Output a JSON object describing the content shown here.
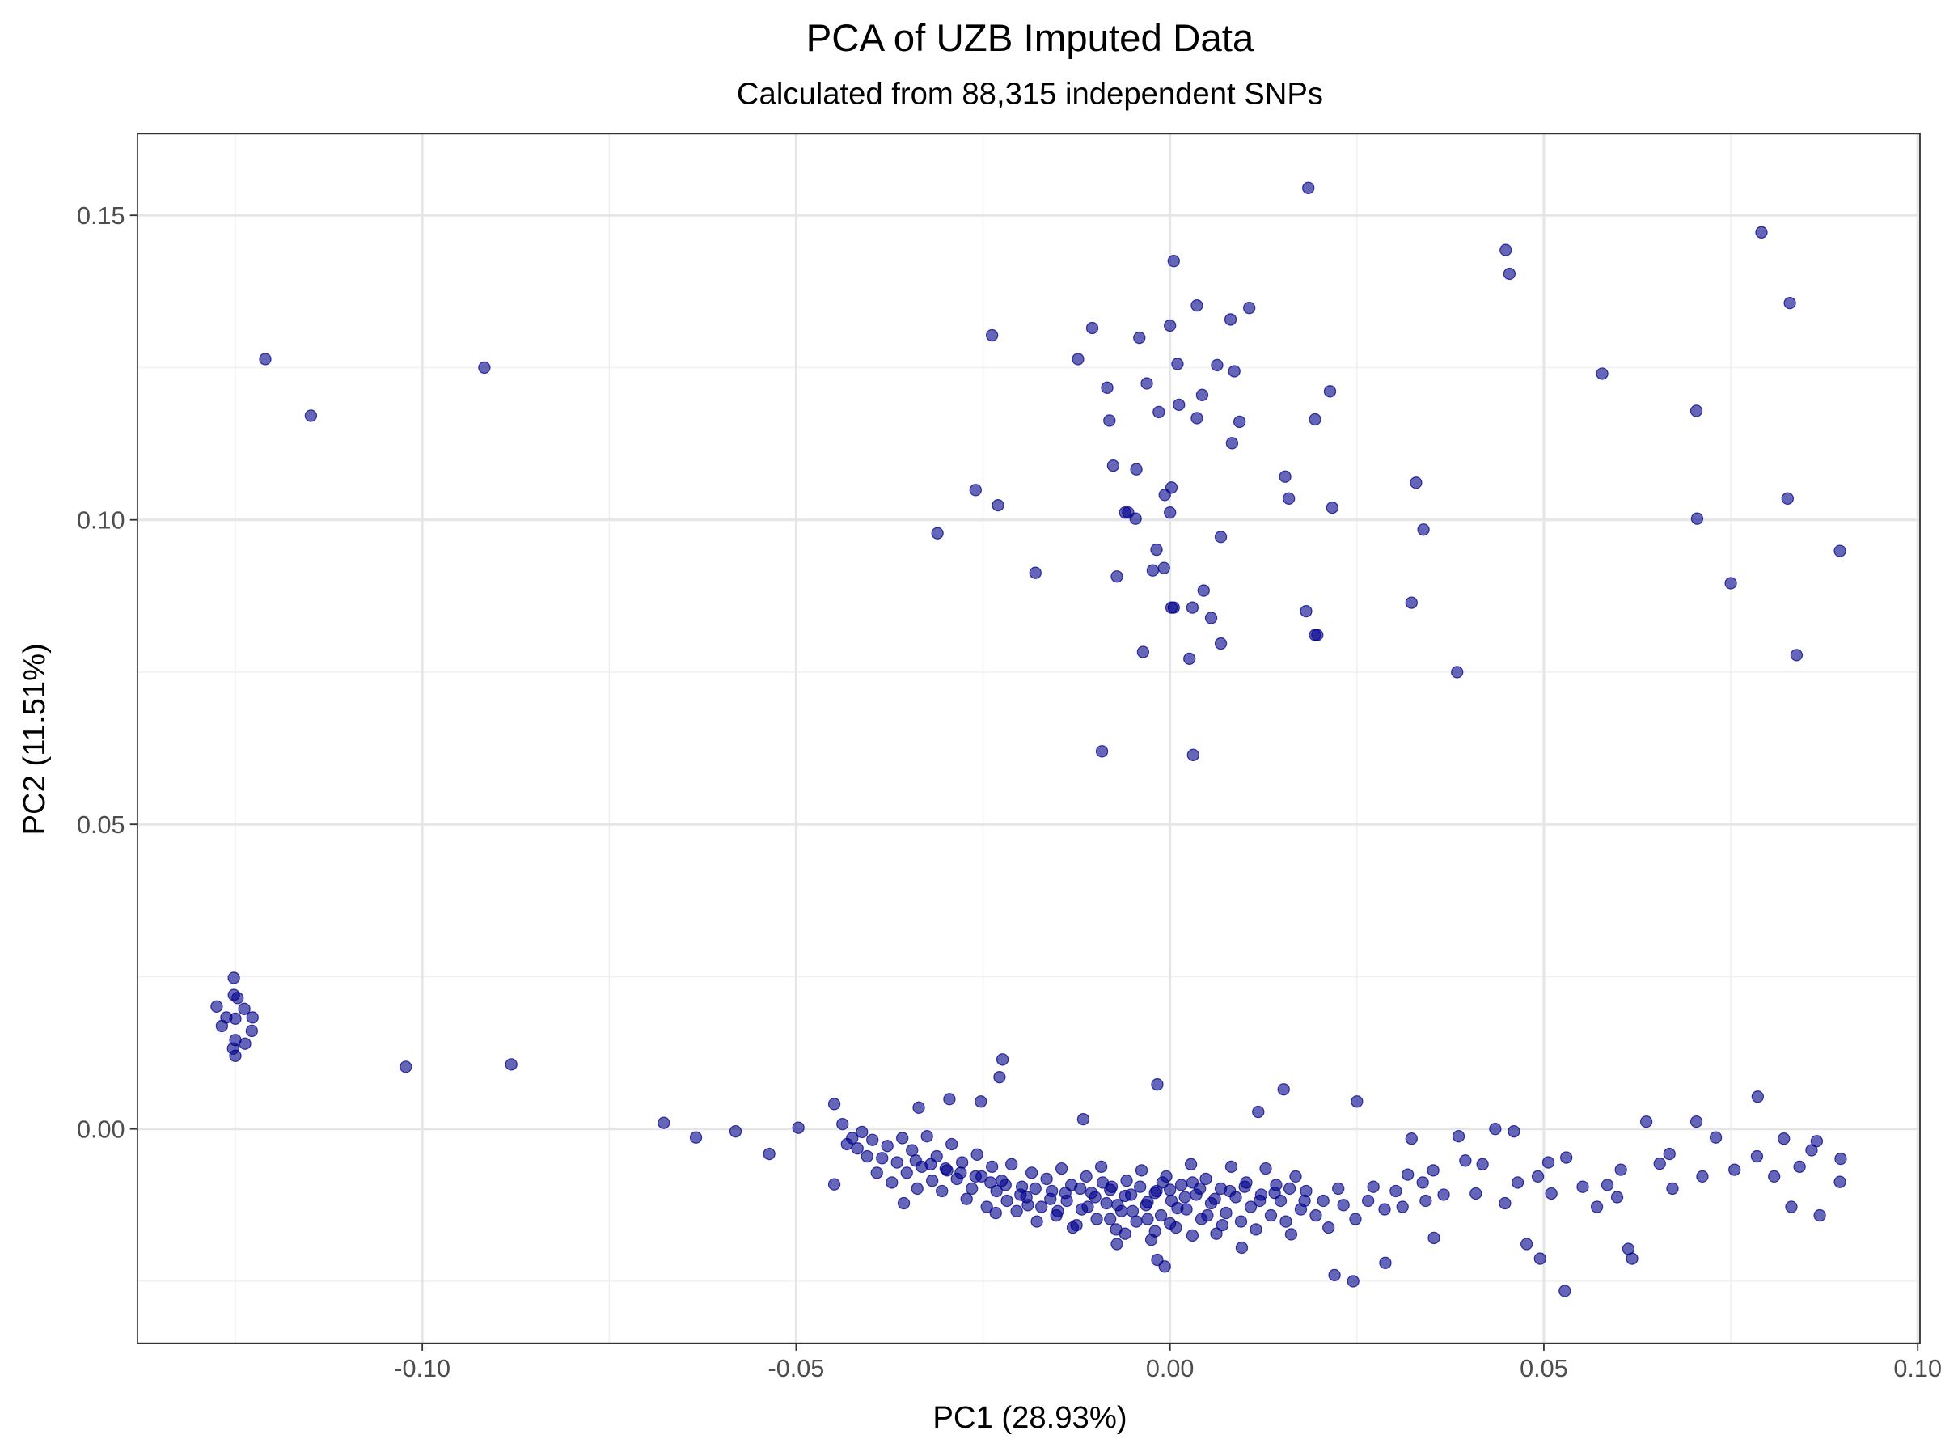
{
  "chart_data": {
    "type": "scatter",
    "title": "PCA of UZB Imputed Data",
    "subtitle": "Calculated from 88,315 independent SNPs",
    "xlabel": "PC1 (28.93%)",
    "ylabel": "PC2 (11.51%)",
    "xlim": [
      -0.1381,
      0.1003
    ],
    "ylim": [
      -0.0352,
      0.1634
    ],
    "x_ticks": [
      -0.1,
      -0.05,
      0.0,
      0.05,
      0.1
    ],
    "x_tick_labels": [
      "-0.10",
      "-0.05",
      "0.00",
      "0.05",
      "0.10"
    ],
    "y_ticks": [
      0.0,
      0.05,
      0.1,
      0.15
    ],
    "y_tick_labels": [
      "0.00",
      "0.05",
      "0.10",
      "0.15"
    ],
    "grid": true,
    "point_color": "#00008B",
    "point_opacity": 0.6,
    "points": [
      [
        -0.121,
        0.1264
      ],
      [
        -0.1149,
        0.1171
      ],
      [
        -0.0917,
        0.125
      ],
      [
        -0.1022,
        0.0102
      ],
      [
        -0.0881,
        0.0106
      ],
      [
        -0.1252,
        0.0248
      ],
      [
        -0.1275,
        0.0201
      ],
      [
        -0.1252,
        0.022
      ],
      [
        -0.1247,
        0.0215
      ],
      [
        -0.1268,
        0.0169
      ],
      [
        -0.1262,
        0.0183
      ],
      [
        -0.125,
        0.0181
      ],
      [
        -0.1238,
        0.0197
      ],
      [
        -0.1227,
        0.0183
      ],
      [
        -0.1228,
        0.0161
      ],
      [
        -0.125,
        0.0146
      ],
      [
        -0.1237,
        0.014
      ],
      [
        -0.1253,
        0.0132
      ],
      [
        -0.125,
        0.012
      ],
      [
        0.0185,
        0.1545
      ],
      [
        0.0005,
        0.1425
      ],
      [
        0.0036,
        0.1352
      ],
      [
        0.0106,
        0.1348
      ],
      [
        -0.0104,
        0.1315
      ],
      [
        0.0,
        0.1319
      ],
      [
        -0.0238,
        0.1303
      ],
      [
        -0.0041,
        0.1299
      ],
      [
        0.0081,
        0.1329
      ],
      [
        -0.0123,
        0.1264
      ],
      [
        0.001,
        0.1256
      ],
      [
        0.0063,
        0.1254
      ],
      [
        0.0086,
        0.1244
      ],
      [
        -0.0031,
        0.1224
      ],
      [
        -0.0084,
        0.1217
      ],
      [
        0.0214,
        0.1211
      ],
      [
        0.0043,
        0.1205
      ],
      [
        0.0012,
        0.1189
      ],
      [
        -0.0015,
        0.1177
      ],
      [
        0.0036,
        0.1167
      ],
      [
        -0.0081,
        0.1163
      ],
      [
        0.0093,
        0.1161
      ],
      [
        0.0194,
        0.1165
      ],
      [
        0.0083,
        0.1126
      ],
      [
        -0.0076,
        0.1089
      ],
      [
        -0.0045,
        0.1083
      ],
      [
        0.0154,
        0.1071
      ],
      [
        -0.026,
        0.1049
      ],
      [
        0.0002,
        0.1053
      ],
      [
        -0.0007,
        0.1041
      ],
      [
        0.0159,
        0.1035
      ],
      [
        -0.023,
        0.1024
      ],
      [
        0.0217,
        0.102
      ],
      [
        -0.006,
        0.1012
      ],
      [
        -0.0056,
        0.1012
      ],
      [
        0.0,
        0.1012
      ],
      [
        -0.0046,
        0.1002
      ],
      [
        -0.0311,
        0.0978
      ],
      [
        0.0068,
        0.0972
      ],
      [
        -0.0018,
        0.0951
      ],
      [
        -0.0008,
        0.0921
      ],
      [
        -0.0023,
        0.0917
      ],
      [
        -0.018,
        0.0913
      ],
      [
        -0.0071,
        0.0907
      ],
      [
        0.0045,
        0.0884
      ],
      [
        0.0002,
        0.0856
      ],
      [
        0.0005,
        0.0856
      ],
      [
        0.003,
        0.0856
      ],
      [
        0.0182,
        0.085
      ],
      [
        0.0055,
        0.0839
      ],
      [
        0.0197,
        0.0811
      ],
      [
        0.0194,
        0.0811
      ],
      [
        0.0068,
        0.0797
      ],
      [
        -0.0036,
        0.0783
      ],
      [
        0.0026,
        0.0772
      ],
      [
        -0.0091,
        0.062
      ],
      [
        0.0031,
        0.0614
      ],
      [
        0.0449,
        0.1443
      ],
      [
        0.0454,
        0.1404
      ],
      [
        0.0578,
        0.124
      ],
      [
        0.0329,
        0.1061
      ],
      [
        0.0339,
        0.0984
      ],
      [
        0.0323,
        0.0864
      ],
      [
        0.0384,
        0.075
      ],
      [
        0.0791,
        0.1472
      ],
      [
        0.0829,
        0.1356
      ],
      [
        0.0704,
        0.1179
      ],
      [
        0.0826,
        0.1035
      ],
      [
        0.0705,
        0.1002
      ],
      [
        0.0896,
        0.0949
      ],
      [
        0.075,
        0.0896
      ],
      [
        0.0838,
        0.0778
      ],
      [
        -0.0677,
        0.001
      ],
      [
        -0.0634,
        -0.0014
      ],
      [
        -0.0581,
        -0.0004
      ],
      [
        -0.0536,
        -0.0041
      ],
      [
        -0.0497,
        0.0002
      ],
      [
        -0.0449,
        0.0041
      ],
      [
        -0.0449,
        -0.0091
      ],
      [
        -0.0224,
        0.0114
      ],
      [
        -0.0228,
        0.0085
      ],
      [
        -0.0017,
        0.0073
      ],
      [
        0.0152,
        0.0065
      ],
      [
        0.025,
        0.0045
      ],
      [
        0.0786,
        0.0053
      ],
      [
        0.0528,
        -0.0266
      ],
      [
        0.0495,
        -0.0213
      ],
      [
        0.0477,
        -0.0189
      ],
      [
        0.0618,
        -0.0213
      ],
      [
        0.0613,
        -0.0197
      ],
      [
        0.0245,
        -0.025
      ],
      [
        0.022,
        -0.024
      ],
      [
        0.0288,
        -0.022
      ],
      [
        0.0353,
        -0.0179
      ],
      [
        0.0869,
        -0.0142
      ],
      [
        0.0831,
        -0.0128
      ],
      [
        0.0896,
        -0.0087
      ],
      [
        0.0897,
        -0.0049
      ],
      [
        0.073,
        -0.0014
      ],
      [
        0.0637,
        0.0012
      ],
      [
        0.0704,
        0.0012
      ],
      [
        0.0603,
        -0.0067
      ],
      [
        0.0571,
        -0.0128
      ],
      [
        0.051,
        -0.0106
      ],
      [
        0.053,
        -0.0047
      ],
      [
        0.046,
        -0.0004
      ],
      [
        0.0435,
        0.0
      ],
      [
        0.0386,
        -0.0012
      ],
      [
        0.0323,
        -0.0016
      ],
      [
        0.0409,
        -0.0106
      ],
      [
        0.0366,
        -0.0108
      ],
      [
        0.0311,
        -0.0128
      ],
      [
        0.0162,
        -0.0173
      ],
      [
        0.0096,
        -0.0195
      ],
      [
        -0.0017,
        -0.0215
      ],
      [
        -0.0007,
        -0.0226
      ],
      [
        -0.0071,
        -0.0189
      ],
      [
        -0.0233,
        -0.0138
      ],
      [
        -0.0356,
        -0.0122
      ],
      [
        -0.0336,
        0.0035
      ],
      [
        -0.0295,
        0.0049
      ],
      [
        -0.0253,
        0.0045
      ],
      [
        -0.0116,
        0.0016
      ],
      [
        0.0118,
        0.0028
      ],
      [
        0.0821,
        -0.0016
      ],
      [
        0.0865,
        -0.002
      ],
      [
        0.0755,
        -0.0067
      ],
      [
        0.0672,
        -0.0098
      ],
      [
        0.0655,
        -0.0057
      ],
      [
        0.0785,
        -0.0045
      ],
      [
        0.0808,
        -0.0078
      ],
      [
        0.0842,
        -0.0062
      ],
      [
        0.0858,
        -0.0035
      ],
      [
        0.0712,
        -0.0078
      ],
      [
        0.0668,
        -0.0041
      ],
      [
        0.0585,
        -0.0092
      ],
      [
        0.0598,
        -0.0112
      ],
      [
        0.0552,
        -0.0095
      ],
      [
        0.0492,
        -0.0078
      ],
      [
        0.0506,
        -0.0055
      ],
      [
        0.0465,
        -0.0088
      ],
      [
        0.0448,
        -0.0122
      ],
      [
        0.0418,
        -0.0058
      ],
      [
        0.0395,
        -0.0052
      ],
      [
        0.0352,
        -0.0068
      ],
      [
        0.0338,
        -0.0088
      ],
      [
        0.0342,
        -0.0118
      ],
      [
        0.0318,
        -0.0075
      ],
      [
        0.0302,
        -0.0102
      ],
      [
        0.0287,
        -0.0132
      ],
      [
        0.0272,
        -0.0095
      ],
      [
        0.0265,
        -0.0118
      ],
      [
        0.0248,
        -0.0148
      ],
      [
        0.0232,
        -0.0125
      ],
      [
        0.0225,
        -0.0098
      ],
      [
        0.0212,
        -0.0162
      ],
      [
        0.0205,
        -0.0118
      ],
      [
        0.0195,
        -0.0142
      ],
      [
        0.0182,
        -0.0102
      ],
      [
        0.0175,
        -0.0132
      ],
      [
        0.0168,
        -0.0078
      ],
      [
        0.0155,
        -0.0152
      ],
      [
        0.0148,
        -0.0118
      ],
      [
        0.0142,
        -0.0092
      ],
      [
        0.0135,
        -0.0142
      ],
      [
        0.0128,
        -0.0065
      ],
      [
        0.0122,
        -0.0108
      ],
      [
        0.0115,
        -0.0165
      ],
      [
        0.0108,
        -0.0128
      ],
      [
        0.0102,
        -0.0088
      ],
      [
        0.0095,
        -0.0152
      ],
      [
        0.0088,
        -0.0112
      ],
      [
        0.0082,
        -0.0062
      ],
      [
        0.0075,
        -0.0138
      ],
      [
        0.0068,
        -0.0098
      ],
      [
        0.0062,
        -0.0172
      ],
      [
        0.0055,
        -0.0122
      ],
      [
        0.0048,
        -0.0082
      ],
      [
        0.0042,
        -0.0148
      ],
      [
        0.0035,
        -0.0108
      ],
      [
        0.0028,
        -0.0058
      ],
      [
        0.0022,
        -0.0132
      ],
      [
        0.0015,
        -0.0092
      ],
      [
        0.0008,
        -0.0162
      ],
      [
        0.0002,
        -0.0118
      ],
      [
        -0.0005,
        -0.0078
      ],
      [
        -0.0012,
        -0.0142
      ],
      [
        -0.0018,
        -0.0102
      ],
      [
        -0.0025,
        -0.0182
      ],
      [
        -0.0032,
        -0.0125
      ],
      [
        -0.0038,
        -0.0068
      ],
      [
        -0.0045,
        -0.0152
      ],
      [
        -0.0052,
        -0.0108
      ],
      [
        -0.0058,
        -0.0085
      ],
      [
        -0.0065,
        -0.0135
      ],
      [
        -0.0072,
        -0.0165
      ],
      [
        -0.0078,
        -0.0095
      ],
      [
        -0.0085,
        -0.0122
      ],
      [
        -0.0092,
        -0.0062
      ],
      [
        -0.0098,
        -0.0148
      ],
      [
        -0.0105,
        -0.0105
      ],
      [
        -0.0112,
        -0.0078
      ],
      [
        -0.0118,
        -0.0132
      ],
      [
        -0.0125,
        -0.0158
      ],
      [
        -0.0132,
        -0.0092
      ],
      [
        -0.0138,
        -0.0118
      ],
      [
        -0.0145,
        -0.0065
      ],
      [
        -0.0152,
        -0.0142
      ],
      [
        -0.0158,
        -0.0102
      ],
      [
        -0.0165,
        -0.0082
      ],
      [
        -0.0172,
        -0.0128
      ],
      [
        -0.0178,
        -0.0152
      ],
      [
        -0.0185,
        -0.0072
      ],
      [
        -0.0192,
        -0.0112
      ],
      [
        -0.0198,
        -0.0095
      ],
      [
        -0.0205,
        -0.0135
      ],
      [
        -0.0212,
        -0.0058
      ],
      [
        -0.0218,
        -0.0118
      ],
      [
        -0.0225,
        -0.0085
      ],
      [
        -0.0232,
        -0.0102
      ],
      [
        -0.0238,
        -0.0062
      ],
      [
        -0.0245,
        -0.0128
      ],
      [
        -0.0252,
        -0.0078
      ],
      [
        -0.0258,
        -0.0042
      ],
      [
        -0.0265,
        -0.0098
      ],
      [
        -0.0272,
        -0.0115
      ],
      [
        -0.0278,
        -0.0055
      ],
      [
        -0.0285,
        -0.0082
      ],
      [
        -0.0292,
        -0.0025
      ],
      [
        -0.0298,
        -0.0068
      ],
      [
        -0.0305,
        -0.0102
      ],
      [
        -0.0312,
        -0.0045
      ],
      [
        -0.0318,
        -0.0085
      ],
      [
        -0.0325,
        -0.0012
      ],
      [
        -0.0332,
        -0.0062
      ],
      [
        -0.0338,
        -0.0098
      ],
      [
        -0.0345,
        -0.0035
      ],
      [
        -0.0352,
        -0.0072
      ],
      [
        -0.0358,
        -0.0015
      ],
      [
        -0.0365,
        -0.0055
      ],
      [
        -0.0372,
        -0.0088
      ],
      [
        -0.0378,
        -0.0028
      ],
      [
        -0.0385,
        -0.0048
      ],
      [
        -0.0392,
        -0.0072
      ],
      [
        -0.0398,
        -0.0018
      ],
      [
        -0.0405,
        -0.0045
      ],
      [
        -0.0412,
        -0.0005
      ],
      [
        -0.0418,
        -0.0032
      ],
      [
        -0.0425,
        -0.0015
      ],
      [
        -0.0432,
        -0.0025
      ],
      [
        -0.0438,
        0.0008
      ],
      [
        -0.008,
        -0.01
      ],
      [
        -0.006,
        -0.011
      ],
      [
        -0.004,
        -0.0095
      ],
      [
        -0.002,
        -0.0105
      ],
      [
        0.0,
        -0.01
      ],
      [
        0.002,
        -0.0112
      ],
      [
        0.004,
        -0.0098
      ],
      [
        -0.01,
        -0.0112
      ],
      [
        -0.012,
        -0.0098
      ],
      [
        -0.003,
        -0.012
      ],
      [
        0.001,
        -0.013
      ],
      [
        -0.007,
        -0.0125
      ],
      [
        0.006,
        -0.0115
      ],
      [
        -0.009,
        -0.0088
      ],
      [
        -0.001,
        -0.0088
      ],
      [
        0.003,
        -0.0088
      ],
      [
        -0.005,
        -0.0135
      ],
      [
        0.008,
        -0.0102
      ],
      [
        -0.014,
        -0.0105
      ],
      [
        -0.016,
        -0.0115
      ],
      [
        0.01,
        -0.0095
      ],
      [
        -0.011,
        -0.0128
      ],
      [
        0.005,
        -0.0142
      ],
      [
        -0.003,
        -0.0148
      ],
      [
        0.012,
        -0.0118
      ],
      [
        -0.018,
        -0.0098
      ],
      [
        -0.02,
        -0.0108
      ],
      [
        -0.022,
        -0.0092
      ],
      [
        -0.024,
        -0.0088
      ],
      [
        -0.026,
        -0.0078
      ],
      [
        -0.028,
        -0.0072
      ],
      [
        -0.03,
        -0.0065
      ],
      [
        -0.032,
        -0.0058
      ],
      [
        -0.034,
        -0.0052
      ],
      [
        -0.019,
        -0.0125
      ],
      [
        0.014,
        -0.0105
      ],
      [
        0.016,
        -0.0098
      ],
      [
        0.018,
        -0.0118
      ],
      [
        -0.015,
        -0.0135
      ],
      [
        -0.008,
        -0.0148
      ],
      [
        0.0,
        -0.0155
      ],
      [
        0.007,
        -0.0158
      ],
      [
        -0.002,
        -0.0168
      ],
      [
        -0.006,
        -0.0172
      ],
      [
        0.003,
        -0.0175
      ],
      [
        -0.013,
        -0.0162
      ]
    ]
  }
}
